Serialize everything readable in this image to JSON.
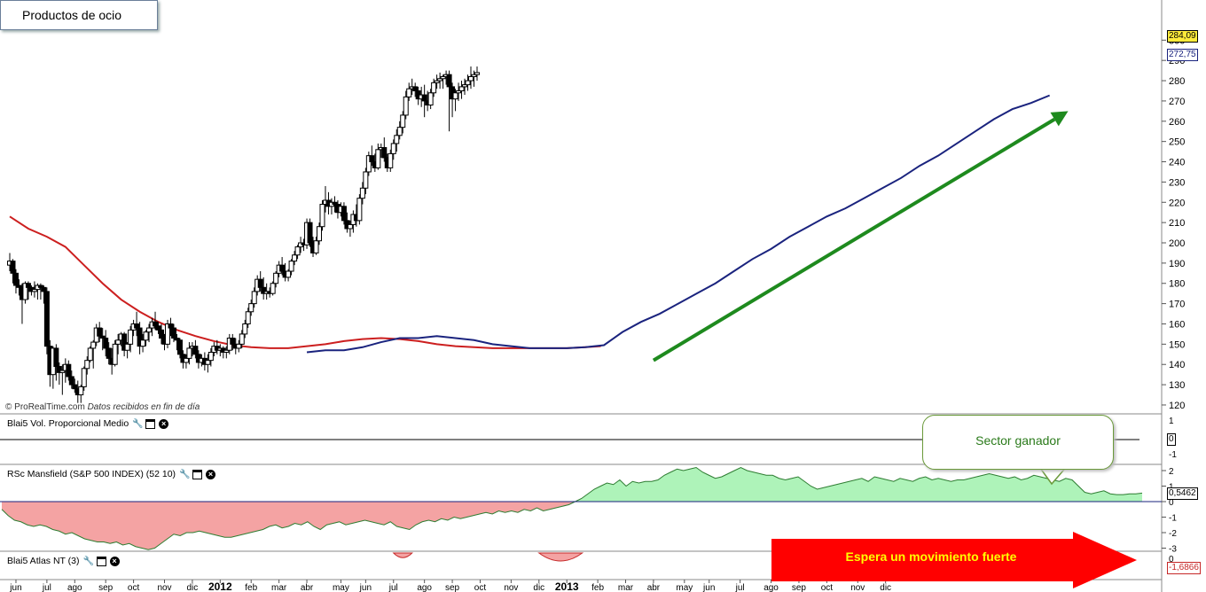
{
  "title": "Productos de ocio",
  "copyright": "© ProRealTime.com",
  "copyright_note": "Datos recibidos en fin de día",
  "chart_data": {
    "type": "candlestick",
    "y_ticks": [
      120,
      130,
      140,
      150,
      160,
      170,
      180,
      190,
      200,
      210,
      220,
      230,
      240,
      250,
      260,
      270,
      280,
      290,
      300
    ],
    "ylim": [
      115,
      302
    ],
    "x_labels": [
      "jun",
      "jul",
      "ago",
      "sep",
      "oct",
      "nov",
      "dic",
      "2012",
      "feb",
      "mar",
      "abr",
      "may",
      "jun",
      "jul",
      "ago",
      "sep",
      "oct",
      "nov",
      "dic",
      "2013",
      "feb",
      "mar",
      "abr",
      "may",
      "jun",
      "jul",
      "ago",
      "sep",
      "oct",
      "nov",
      "dic"
    ],
    "x_label_weeks": [
      2,
      12,
      21,
      31,
      40,
      50,
      59,
      68,
      78,
      87,
      96,
      107,
      115,
      124,
      134,
      143,
      152,
      162,
      171,
      180,
      190,
      199,
      208,
      218,
      226,
      236,
      246,
      255,
      264,
      274,
      283
    ],
    "price_tags": {
      "last": "284,09",
      "ma": "272,75"
    },
    "candles": [
      [
        189,
        195,
        186,
        191
      ],
      [
        191,
        192,
        180,
        185
      ],
      [
        185,
        187,
        175,
        179
      ],
      [
        179,
        182,
        174,
        178
      ],
      [
        178,
        180,
        160,
        172
      ],
      [
        172,
        181,
        170,
        180
      ],
      [
        180,
        181,
        172,
        178
      ],
      [
        178,
        179,
        174,
        176
      ],
      [
        176,
        181,
        173,
        177
      ],
      [
        177,
        180,
        172,
        179
      ],
      [
        179,
        180,
        172,
        178
      ],
      [
        178,
        179,
        170,
        176
      ],
      [
        176,
        178,
        145,
        149
      ],
      [
        149,
        152,
        129,
        135
      ],
      [
        135,
        149,
        128,
        148
      ],
      [
        148,
        150,
        132,
        139
      ],
      [
        139,
        141,
        130,
        136
      ],
      [
        136,
        140,
        125,
        137
      ],
      [
        137,
        143,
        131,
        140
      ],
      [
        140,
        142,
        132,
        134
      ],
      [
        134,
        137,
        128,
        130
      ],
      [
        130,
        133,
        126,
        128
      ],
      [
        128,
        132,
        121,
        125
      ],
      [
        125,
        130,
        121,
        129
      ],
      [
        129,
        139,
        127,
        138
      ],
      [
        138,
        144,
        135,
        142
      ],
      [
        142,
        149,
        141,
        148
      ],
      [
        148,
        152,
        138,
        151
      ],
      [
        151,
        160,
        149,
        158
      ],
      [
        158,
        161,
        151,
        154
      ],
      [
        154,
        158,
        147,
        153
      ],
      [
        153,
        157,
        144,
        148
      ],
      [
        148,
        151,
        140,
        143
      ],
      [
        143,
        148,
        135,
        140
      ],
      [
        140,
        152,
        139,
        150
      ],
      [
        150,
        155,
        145,
        152
      ],
      [
        152,
        156,
        149,
        155
      ],
      [
        155,
        156,
        144,
        147
      ],
      [
        147,
        151,
        143,
        150
      ],
      [
        150,
        159,
        146,
        157
      ],
      [
        157,
        162,
        154,
        160
      ],
      [
        160,
        166,
        154,
        158
      ],
      [
        158,
        161,
        145,
        149
      ],
      [
        149,
        155,
        146,
        152
      ],
      [
        152,
        157,
        149,
        156
      ],
      [
        156,
        160,
        151,
        158
      ],
      [
        158,
        163,
        154,
        161
      ],
      [
        161,
        166,
        157,
        159
      ],
      [
        159,
        161,
        155,
        157
      ],
      [
        157,
        160,
        150,
        153
      ],
      [
        153,
        155,
        147,
        150
      ],
      [
        150,
        162,
        148,
        160
      ],
      [
        160,
        163,
        154,
        158
      ],
      [
        158,
        160,
        151,
        153
      ],
      [
        153,
        155,
        147,
        152
      ],
      [
        152,
        153,
        143,
        145
      ],
      [
        145,
        147,
        138,
        141
      ],
      [
        141,
        145,
        138,
        143
      ],
      [
        143,
        151,
        140,
        148
      ],
      [
        148,
        151,
        144,
        149
      ],
      [
        149,
        152,
        143,
        145
      ],
      [
        145,
        147,
        138,
        141
      ],
      [
        141,
        145,
        139,
        143
      ],
      [
        143,
        146,
        137,
        140
      ],
      [
        140,
        145,
        136,
        142
      ],
      [
        142,
        148,
        139,
        146
      ],
      [
        146,
        151,
        144,
        149
      ],
      [
        149,
        152,
        145,
        147
      ],
      [
        147,
        150,
        144,
        148
      ],
      [
        148,
        149,
        143,
        146
      ],
      [
        146,
        149,
        143,
        147
      ],
      [
        147,
        155,
        145,
        153
      ],
      [
        153,
        155,
        147,
        150
      ],
      [
        150,
        153,
        145,
        148
      ],
      [
        148,
        152,
        146,
        150
      ],
      [
        150,
        157,
        148,
        155
      ],
      [
        155,
        162,
        153,
        160
      ],
      [
        160,
        168,
        158,
        166
      ],
      [
        166,
        172,
        164,
        170
      ],
      [
        170,
        178,
        168,
        176
      ],
      [
        176,
        184,
        174,
        182
      ],
      [
        182,
        186,
        176,
        178
      ],
      [
        178,
        183,
        172,
        175
      ],
      [
        175,
        180,
        172,
        176
      ],
      [
        176,
        178,
        173,
        175
      ],
      [
        175,
        181,
        174,
        180
      ],
      [
        180,
        186,
        178,
        185
      ],
      [
        185,
        191,
        183,
        189
      ],
      [
        189,
        193,
        184,
        186
      ],
      [
        186,
        190,
        181,
        183
      ],
      [
        183,
        187,
        181,
        186
      ],
      [
        186,
        192,
        184,
        191
      ],
      [
        191,
        196,
        189,
        194
      ],
      [
        194,
        199,
        192,
        198
      ],
      [
        198,
        203,
        195,
        200
      ],
      [
        200,
        202,
        196,
        199
      ],
      [
        199,
        212,
        197,
        210
      ],
      [
        210,
        212,
        198,
        200
      ],
      [
        200,
        203,
        193,
        195
      ],
      [
        195,
        203,
        194,
        201
      ],
      [
        201,
        210,
        199,
        208
      ],
      [
        208,
        221,
        206,
        219
      ],
      [
        219,
        228,
        215,
        221
      ],
      [
        221,
        225,
        214,
        218
      ],
      [
        218,
        222,
        214,
        220
      ],
      [
        220,
        223,
        215,
        219
      ],
      [
        219,
        221,
        212,
        215
      ],
      [
        215,
        220,
        213,
        218
      ],
      [
        218,
        220,
        209,
        211
      ],
      [
        211,
        215,
        205,
        207
      ],
      [
        207,
        211,
        203,
        209
      ],
      [
        209,
        216,
        205,
        214
      ],
      [
        214,
        219,
        208,
        211
      ],
      [
        211,
        224,
        209,
        222
      ],
      [
        222,
        230,
        219,
        227
      ],
      [
        227,
        237,
        224,
        235
      ],
      [
        235,
        245,
        233,
        243
      ],
      [
        243,
        248,
        238,
        240
      ],
      [
        240,
        244,
        235,
        237
      ],
      [
        237,
        249,
        236,
        246
      ],
      [
        246,
        249,
        242,
        247
      ],
      [
        247,
        252,
        240,
        242
      ],
      [
        242,
        244,
        235,
        237
      ],
      [
        237,
        246,
        235,
        244
      ],
      [
        244,
        251,
        241,
        249
      ],
      [
        249,
        256,
        245,
        253
      ],
      [
        253,
        260,
        251,
        257
      ],
      [
        257,
        265,
        254,
        263
      ],
      [
        263,
        275,
        261,
        272
      ],
      [
        272,
        279,
        270,
        276
      ],
      [
        276,
        281,
        273,
        277
      ],
      [
        277,
        279,
        272,
        275
      ],
      [
        275,
        277,
        268,
        271
      ],
      [
        271,
        277,
        267,
        273
      ],
      [
        273,
        278,
        262,
        270
      ],
      [
        270,
        275,
        265,
        268
      ],
      [
        268,
        276,
        266,
        274
      ],
      [
        274,
        281,
        272,
        279
      ],
      [
        279,
        283,
        276,
        280
      ],
      [
        280,
        284,
        276,
        281
      ],
      [
        281,
        283,
        276,
        282
      ],
      [
        282,
        285,
        278,
        283
      ],
      [
        283,
        285,
        255,
        277
      ],
      [
        277,
        279,
        262,
        271
      ],
      [
        271,
        276,
        265,
        274
      ],
      [
        274,
        279,
        270,
        275
      ],
      [
        275,
        280,
        271,
        277
      ],
      [
        277,
        281,
        273,
        278
      ],
      [
        278,
        283,
        275,
        280
      ],
      [
        280,
        287,
        276,
        282
      ],
      [
        282,
        285,
        277,
        283
      ],
      [
        283,
        287,
        280,
        284
      ]
    ],
    "ma_red": [
      [
        0,
        213
      ],
      [
        6,
        207
      ],
      [
        12,
        203
      ],
      [
        18,
        198
      ],
      [
        24,
        189
      ],
      [
        30,
        180
      ],
      [
        36,
        172
      ],
      [
        42,
        166
      ],
      [
        48,
        161
      ],
      [
        54,
        157
      ],
      [
        60,
        154
      ],
      [
        66,
        151.5
      ],
      [
        72,
        149.5
      ],
      [
        78,
        148.5
      ],
      [
        84,
        148
      ],
      [
        90,
        148
      ],
      [
        96,
        149
      ],
      [
        102,
        150
      ],
      [
        108,
        151.5
      ],
      [
        114,
        152.5
      ],
      [
        120,
        153
      ],
      [
        126,
        152.5
      ],
      [
        132,
        151.5
      ],
      [
        138,
        150
      ],
      [
        144,
        149
      ],
      [
        150,
        148.5
      ],
      [
        156,
        148
      ],
      [
        162,
        148
      ],
      [
        168,
        148
      ],
      [
        174,
        148
      ],
      [
        180,
        148
      ],
      [
        186,
        148.5
      ],
      [
        191,
        149
      ]
    ],
    "ma_blue": [
      [
        96,
        146
      ],
      [
        102,
        147
      ],
      [
        108,
        147
      ],
      [
        114,
        148.5
      ],
      [
        120,
        151
      ],
      [
        126,
        153
      ],
      [
        132,
        153
      ],
      [
        138,
        154
      ],
      [
        144,
        153
      ],
      [
        150,
        152
      ],
      [
        156,
        150
      ],
      [
        162,
        149
      ],
      [
        168,
        148
      ],
      [
        174,
        148
      ],
      [
        180,
        148
      ],
      [
        186,
        148.5
      ],
      [
        192,
        149.5
      ],
      [
        198,
        156
      ],
      [
        204,
        161
      ],
      [
        210,
        165
      ],
      [
        216,
        170
      ],
      [
        222,
        175
      ],
      [
        228,
        180
      ],
      [
        234,
        186
      ],
      [
        240,
        192
      ],
      [
        246,
        197
      ],
      [
        252,
        203
      ],
      [
        258,
        208
      ],
      [
        264,
        213
      ],
      [
        270,
        217
      ],
      [
        276,
        222
      ],
      [
        282,
        227
      ],
      [
        288,
        232
      ],
      [
        294,
        238
      ],
      [
        300,
        243
      ],
      [
        306,
        249
      ],
      [
        312,
        255
      ],
      [
        318,
        261
      ],
      [
        324,
        266
      ],
      [
        330,
        269
      ],
      [
        336,
        272.75
      ]
    ],
    "trend_arrow": {
      "from_week": 208,
      "from_value": 142,
      "to_week": 342,
      "to_value": 265
    },
    "subpanels": [
      {
        "label": "Blai5 Vol. Proporcional Medio",
        "y_ticks": [
          "1",
          "0",
          "-1"
        ],
        "last": "0"
      },
      {
        "label": "RSc Mansfield (S&P 500 INDEX) (52 10)",
        "y_ticks": [
          "2",
          "1",
          "0",
          "-1",
          "-2",
          "-3"
        ],
        "last": "0,5462"
      },
      {
        "label": "Blai5 Atlas NT (3)",
        "y_ticks": [
          "0"
        ],
        "last": "-1,6866"
      }
    ],
    "mansfield": [
      -0.5,
      -0.9,
      -1.2,
      -1.3,
      -1.5,
      -1.6,
      -1.5,
      -1.6,
      -1.8,
      -1.9,
      -2.1,
      -2.0,
      -2.2,
      -2.4,
      -2.5,
      -2.6,
      -2.6,
      -2.7,
      -2.6,
      -2.8,
      -2.7,
      -2.9,
      -3.0,
      -3.1,
      -3.0,
      -2.7,
      -2.4,
      -2.1,
      -2.2,
      -2.0,
      -2.0,
      -1.9,
      -2.0,
      -2.1,
      -2.2,
      -2.3,
      -2.3,
      -2.2,
      -2.1,
      -2.0,
      -1.9,
      -1.8,
      -1.6,
      -1.5,
      -1.7,
      -1.6,
      -1.4,
      -1.5,
      -1.3,
      -1.6,
      -1.8,
      -1.5,
      -1.4,
      -1.3,
      -1.5,
      -1.4,
      -1.3,
      -1.2,
      -1.3,
      -1.4,
      -1.5,
      -1.3,
      -1.6,
      -1.7,
      -1.8,
      -1.5,
      -1.3,
      -1.2,
      -1.3,
      -1.1,
      -1.2,
      -1.0,
      -1.1,
      -1.0,
      -0.9,
      -0.8,
      -0.7,
      -0.8,
      -0.6,
      -0.7,
      -0.6,
      -0.7,
      -0.5,
      -0.6,
      -0.4,
      -0.6,
      -0.5,
      -0.4,
      -0.3,
      -0.2,
      0.0,
      0.2,
      0.5,
      0.8,
      1.0,
      1.2,
      1.1,
      1.4,
      1.0,
      1.3,
      1.2,
      1.3,
      1.3,
      1.4,
      1.7,
      1.9,
      2.1,
      2.0,
      2.1,
      2.2,
      1.9,
      1.7,
      1.5,
      1.6,
      1.8,
      2.0,
      2.2,
      2.0,
      1.9,
      1.8,
      1.7,
      1.7,
      1.5,
      1.4,
      1.5,
      1.6,
      1.3,
      1.0,
      0.8,
      0.9,
      1.0,
      1.1,
      1.2,
      1.3,
      1.4,
      1.5,
      1.3,
      1.6,
      1.5,
      1.4,
      1.3,
      1.5,
      1.4,
      1.3,
      1.5,
      1.6,
      1.4,
      1.5,
      1.4,
      1.3,
      1.4,
      1.4,
      1.5,
      1.6,
      1.7,
      1.8,
      1.7,
      1.6,
      1.5,
      1.6,
      1.4,
      1.5,
      1.7,
      1.6,
      1.5,
      1.4,
      1.3,
      1.5,
      1.4,
      1.0,
      0.6,
      0.5,
      0.6,
      0.7,
      0.5,
      0.45,
      0.45,
      0.5,
      0.5,
      0.55
    ],
    "atlas_dips": [
      {
        "start_week": 124,
        "end_week": 130,
        "depth": 0.25
      },
      {
        "start_week": 171,
        "end_week": 185,
        "depth": 1
      },
      {
        "start_week": 328,
        "end_week": 340,
        "depth": 1.6866
      }
    ],
    "annotations": {
      "bubble": "Sector ganador",
      "arrow": "Espera un movimiento fuerte"
    }
  }
}
